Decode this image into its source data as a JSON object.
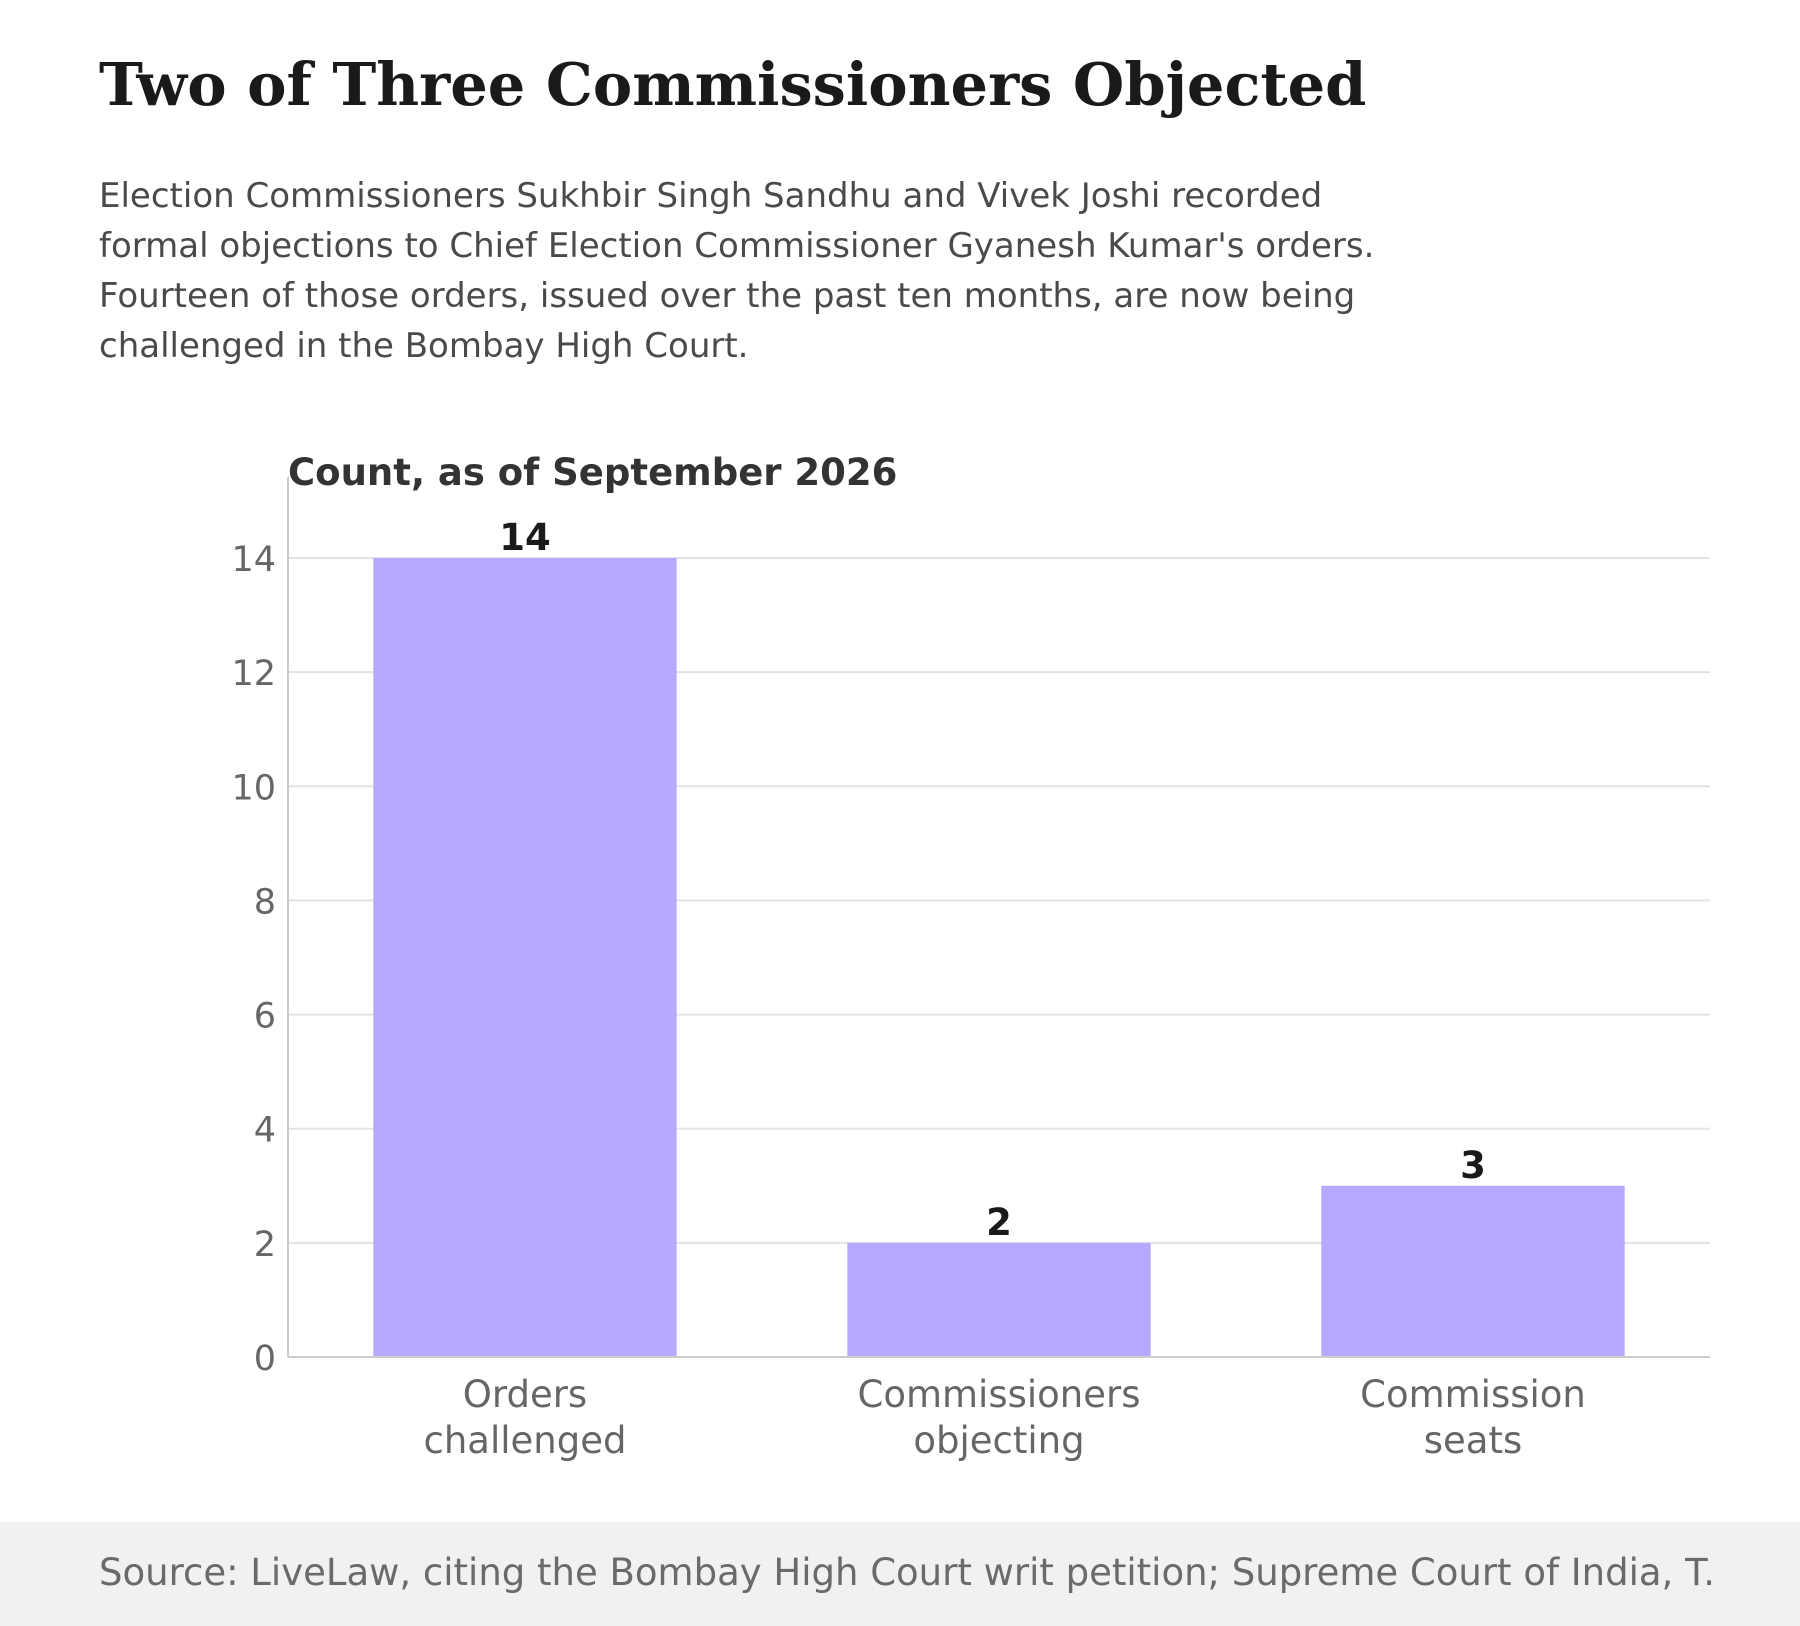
{
  "header": {
    "title": "Two of Three Commissioners Objected",
    "subtitle": "Election Commissioners Sukhbir Singh Sandhu and Vivek Joshi recorded formal objections to Chief Election Commissioner Gyanesh Kumar's orders. Fourteen of those orders, issued over the past ten months, are now being challenged in the Bombay High Court."
  },
  "footer": {
    "source": "Source: LiveLaw, citing the Bombay High Court writ petition; Supreme Court of India, T."
  },
  "chart_data": {
    "type": "bar",
    "title": "Count, as of September 2026",
    "categories": [
      [
        "Orders",
        "challenged"
      ],
      [
        "Commissioners",
        "objecting"
      ],
      [
        "Commission",
        "seats"
      ]
    ],
    "values": [
      14,
      2,
      3
    ],
    "data_labels": [
      "14",
      "2",
      "3"
    ],
    "ylim": [
      0,
      14.7
    ],
    "yticks": [
      0,
      2,
      4,
      6,
      8,
      10,
      12,
      14
    ],
    "xlabel": "",
    "ylabel": "",
    "grid": true,
    "legend": "none",
    "colors": {
      "bar": "#b8a8ff",
      "grid": "#e3e3e3",
      "axis": "#cccccc",
      "tick_text": "#666666",
      "label_text": "#1a1a1a",
      "chart_title": "#333333"
    }
  }
}
